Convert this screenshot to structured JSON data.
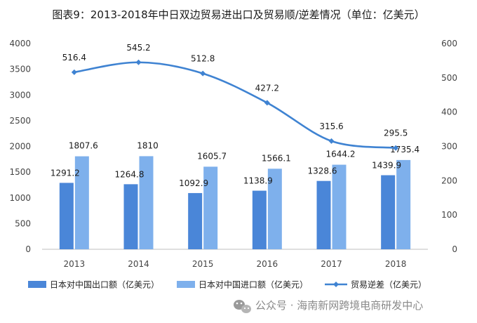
{
  "chart_data": {
    "type": "bar",
    "title": "图表9：2013-2018年中日双边贸易进出口及贸易顺/逆差情况（单位：亿美元）",
    "categories": [
      "2013",
      "2014",
      "2015",
      "2016",
      "2017",
      "2018"
    ],
    "series": [
      {
        "name": "日本对中国出口额（亿美元）",
        "type": "bar",
        "axis": "left",
        "color": "#4a86d8",
        "values": [
          1291.2,
          1264.8,
          1092.9,
          1138.9,
          1328.6,
          1439.9
        ]
      },
      {
        "name": "日本对中国进口额（亿美元）",
        "type": "bar",
        "axis": "left",
        "color": "#7eb0ec",
        "values": [
          1807.6,
          1810,
          1605.7,
          1566.1,
          1644.2,
          1735.4
        ]
      },
      {
        "name": "贸易逆差（亿美元）",
        "type": "line",
        "axis": "right",
        "color": "#3f83d2",
        "values": [
          516.4,
          545.2,
          512.8,
          427.2,
          315.6,
          295.5
        ]
      }
    ],
    "value_labels": {
      "export": [
        "1291.2",
        "1264.8",
        "1092.9",
        "1138.9",
        "1328.6",
        "1439.9"
      ],
      "import": [
        "1807.6",
        "1810",
        "1605.7",
        "1566.1",
        "1644.2",
        "1735.4"
      ],
      "line": [
        "516.4",
        "545.2",
        "512.8",
        "427.2",
        "315.6",
        "295.5"
      ]
    },
    "ylim_left": [
      0,
      4000
    ],
    "ylim_right": [
      0,
      600
    ],
    "yticks_left": [
      "0",
      "500",
      "1000",
      "1500",
      "2000",
      "2500",
      "3000",
      "3500",
      "4000"
    ],
    "yticks_right": [
      "0",
      "100",
      "200",
      "300",
      "400",
      "500",
      "600"
    ],
    "grid": false,
    "legend_position": "bottom"
  },
  "watermark": {
    "text": "公众号 · 海南新网跨境电商研发中心"
  }
}
